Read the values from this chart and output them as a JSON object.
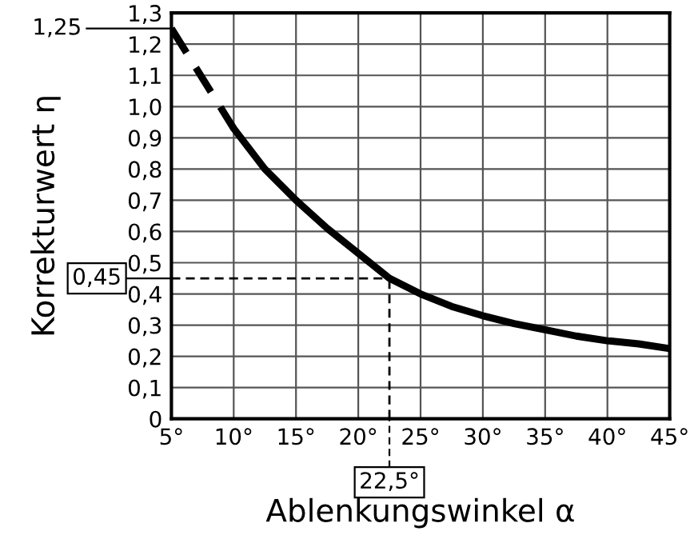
{
  "chart_data": {
    "type": "line",
    "xlabel": "Ablenkungswinkel α",
    "ylabel": "Korrekturwert η",
    "series": [
      {
        "color": "#000000",
        "line_style": "dashed",
        "x": [
          5,
          7.5,
          10
        ],
        "values": [
          1.25,
          1.09,
          0.93
        ]
      },
      {
        "color": "#000000",
        "line_style": "solid",
        "x": [
          10,
          12.5,
          15,
          17.5,
          20,
          22.5,
          25,
          27.5,
          30,
          32.5,
          35,
          37.5,
          40,
          42.5,
          45
        ],
        "values": [
          0.93,
          0.8,
          0.7,
          0.61,
          0.53,
          0.45,
          0.4,
          0.36,
          0.33,
          0.305,
          0.285,
          0.265,
          0.25,
          0.24,
          0.225
        ]
      }
    ],
    "xlim": [
      5,
      45
    ],
    "xticks": [
      {
        "value": 5,
        "label": "5°"
      },
      {
        "value": 10,
        "label": "10°"
      },
      {
        "value": 15,
        "label": "15°"
      },
      {
        "value": 20,
        "label": "20°"
      },
      {
        "value": 25,
        "label": "25°"
      },
      {
        "value": 30,
        "label": "30°"
      },
      {
        "value": 35,
        "label": "35°"
      },
      {
        "value": 40,
        "label": "40°"
      },
      {
        "value": 45,
        "label": "45°"
      }
    ],
    "ylim": [
      0,
      1.3
    ],
    "yticks": [
      0,
      {
        "value": 0.1,
        "label": "0,1"
      },
      {
        "value": 0.2,
        "label": "0,2"
      },
      {
        "value": 0.3,
        "label": "0,3"
      },
      {
        "value": 0.4,
        "label": "0,4"
      },
      {
        "value": 0.5,
        "label": "0,5"
      },
      {
        "value": 0.6,
        "label": "0,6"
      },
      {
        "value": 0.7,
        "label": "0,7"
      },
      {
        "value": 0.8,
        "label": "0,8"
      },
      {
        "value": 0.9,
        "label": "0,9"
      },
      {
        "value": 1.0,
        "label": "1,0"
      },
      {
        "value": 1.1,
        "label": "1,1"
      },
      {
        "value": 1.2,
        "label": "1,2"
      },
      {
        "value": 1.3,
        "label": "1,3"
      }
    ],
    "ref_lines": [
      {
        "axis": "y",
        "value": 0.45,
        "label": "0,45",
        "line_style": "dashed",
        "color": "#000000"
      },
      {
        "axis": "x",
        "value": 22.5,
        "label": "22,5°",
        "line_style": "dashed",
        "color": "#000000"
      },
      {
        "axis": "y",
        "value": 1.25,
        "label": "1,25",
        "line_style": "solid",
        "color": "#000000"
      }
    ],
    "grid": true,
    "legend": false
  }
}
